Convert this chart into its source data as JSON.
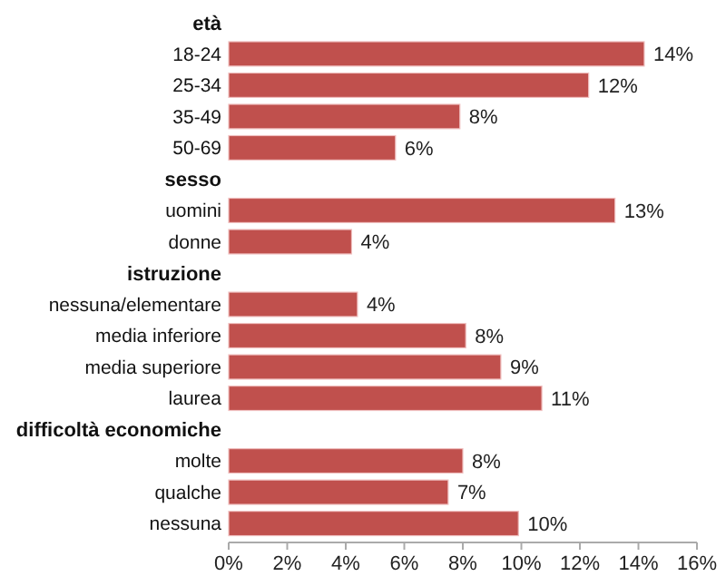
{
  "chart_data": {
    "type": "bar",
    "orientation": "horizontal",
    "categories": [
      "età",
      "18-24",
      "25-34",
      "35-49",
      "50-69",
      "sesso",
      "uomini",
      "donne",
      "istruzione",
      "nessuna/elementare",
      "media inferiore",
      "media superiore",
      "laurea",
      "difficoltà economiche",
      "molte",
      "qualche",
      "nessuna"
    ],
    "values": [
      null,
      14.2,
      12.3,
      7.9,
      5.7,
      null,
      13.2,
      4.2,
      null,
      4.4,
      8.1,
      9.3,
      10.7,
      null,
      8.0,
      7.5,
      9.9
    ],
    "value_labels": [
      null,
      "14%",
      "12%",
      "8%",
      "6%",
      null,
      "13%",
      "4%",
      null,
      "4%",
      "8%",
      "9%",
      "11%",
      null,
      "8%",
      "7%",
      "10%"
    ],
    "color": "#c0504d",
    "xlim": [
      0,
      16
    ],
    "xticks": [
      {
        "value": 0,
        "label": "0%"
      },
      {
        "value": 2,
        "label": "2%"
      },
      {
        "value": 4,
        "label": "4%"
      },
      {
        "value": 6,
        "label": "6%"
      },
      {
        "value": 8,
        "label": "8%"
      },
      {
        "value": 10,
        "label": "10%"
      },
      {
        "value": 12,
        "label": "12%"
      },
      {
        "value": 14,
        "label": "14%"
      },
      {
        "value": 16,
        "label": "16%"
      }
    ],
    "grid": false
  }
}
